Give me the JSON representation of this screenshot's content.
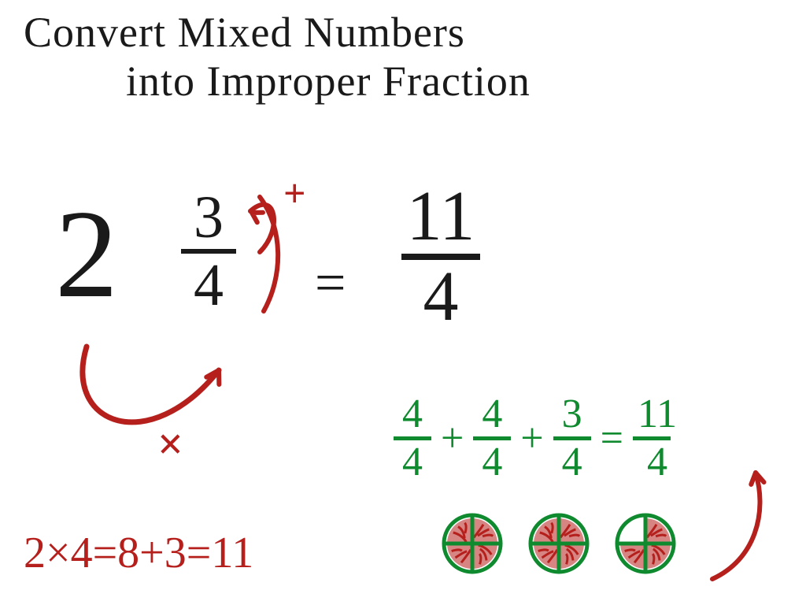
{
  "colors": {
    "black": "#1a1a1a",
    "red": "#b5201d",
    "green": "#0f8a2f"
  },
  "title": {
    "line1": "Convert Mixed Numbers",
    "line2": "into Improper Fraction"
  },
  "mixed_number": {
    "whole": "2",
    "numerator": "3",
    "denominator": "4"
  },
  "equals": "=",
  "result_fraction": {
    "numerator": "11",
    "denominator": "4"
  },
  "annotations": {
    "plus": "+",
    "multiply": "×"
  },
  "red_equation": "2×4=8+3=11",
  "green_sum": {
    "terms": [
      {
        "num": "4",
        "den": "4"
      },
      {
        "num": "4",
        "den": "4"
      },
      {
        "num": "3",
        "den": "4"
      }
    ],
    "plus": "+",
    "eq": "=",
    "result": {
      "num": "11",
      "den": "4"
    }
  },
  "pies": {
    "count": 3,
    "fill_quarters": [
      4,
      4,
      3
    ],
    "circle_stroke": "#0f8a2f",
    "quarter_stroke": "#0f8a2f",
    "fill_color": "#b5201d",
    "stroke_width": 5,
    "radius": 36
  }
}
